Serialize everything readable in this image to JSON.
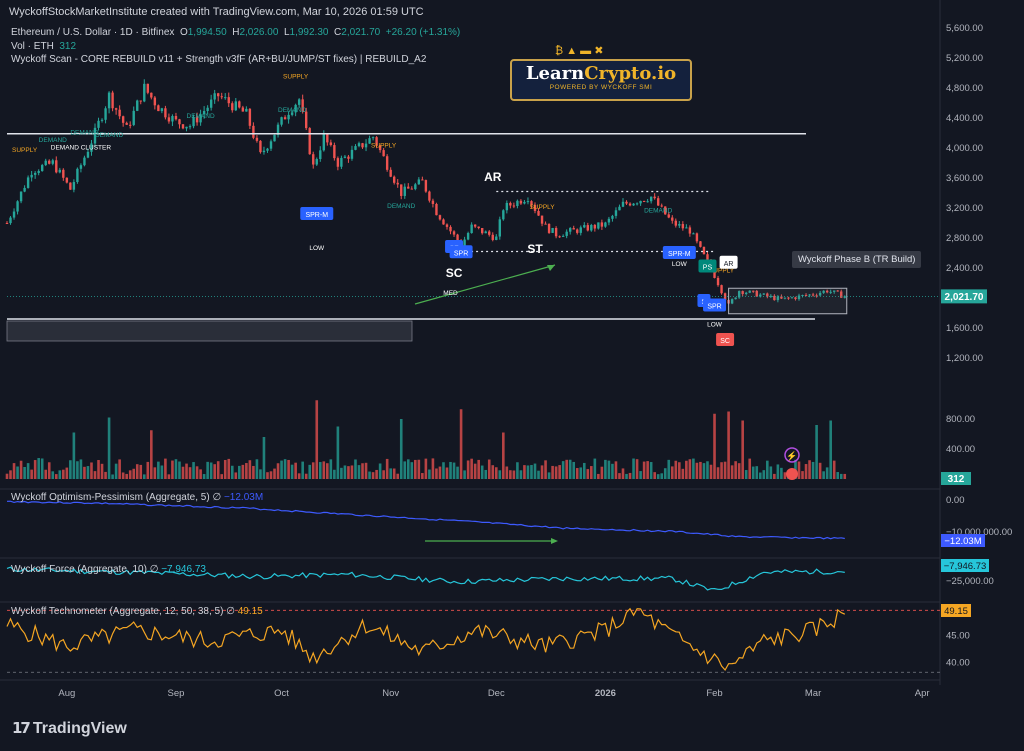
{
  "header": {
    "publisher": "WyckoffStockMarketInstitute created with TradingView.com, Mar 10, 2026 01:59 UTC",
    "symbol_line": "Ethereum / U.S. Dollar · 1D · Bitfinex",
    "ohlc": {
      "O": "1,994.50",
      "H": "2,026.00",
      "L": "1,992.30",
      "C": "2,021.70",
      "change": "+26.20 (+1.31%)"
    },
    "volume_label": "Vol · ETH",
    "volume_value": "312",
    "indicator_line": "Wyckoff Scan - CORE REBUILD v11 + Strength v3fF (AR+BU/JUMP/ST fixes) | REBUILD_A2"
  },
  "logo": {
    "brand_a": "Learn",
    "brand_b": "Crypto.io",
    "tagline": "POWERED BY WYCKOFF SMI"
  },
  "colors": {
    "background": "#131722",
    "up": "#26a69a",
    "down": "#ef5350",
    "force": "#26c6da",
    "optimism": "#3d5afe",
    "technometer": "#f5a623"
  },
  "footer": {
    "brand": "TradingView"
  },
  "chart_data": [
    {
      "type": "candlestick",
      "title": "Ethereum / U.S. Dollar · 1D · Bitfinex",
      "y_ticks": [
        "5,600.00",
        "5,200.00",
        "4,800.00",
        "4,400.00",
        "4,000.00",
        "3,600.00",
        "3,200.00",
        "2,800.00",
        "2,400.00",
        "2,000.00",
        "1,600.00",
        "1,200.00"
      ],
      "ylim": [
        1100,
        5700
      ],
      "x_ticks": [
        "Aug",
        "Sep",
        "Oct",
        "Nov",
        "Dec",
        "2026",
        "Feb",
        "Mar",
        "Apr"
      ],
      "last_price": "2,021.70",
      "anchors": [
        {
          "d": "2025-07-15",
          "p": 3000
        },
        {
          "d": "2025-07-22",
          "p": 3700
        },
        {
          "d": "2025-07-28",
          "p": 3800
        },
        {
          "d": "2025-08-02",
          "p": 3450
        },
        {
          "d": "2025-08-09",
          "p": 4200
        },
        {
          "d": "2025-08-13",
          "p": 4700
        },
        {
          "d": "2025-08-18",
          "p": 4250
        },
        {
          "d": "2025-08-23",
          "p": 4800
        },
        {
          "d": "2025-08-27",
          "p": 4550
        },
        {
          "d": "2025-09-01",
          "p": 4350
        },
        {
          "d": "2025-09-05",
          "p": 4300
        },
        {
          "d": "2025-09-13",
          "p": 4700
        },
        {
          "d": "2025-09-21",
          "p": 4450
        },
        {
          "d": "2025-09-25",
          "p": 3900
        },
        {
          "d": "2025-10-03",
          "p": 4500
        },
        {
          "d": "2025-10-06",
          "p": 4650
        },
        {
          "d": "2025-10-10",
          "p": 3750
        },
        {
          "d": "2025-10-13",
          "p": 4150
        },
        {
          "d": "2025-10-17",
          "p": 3800
        },
        {
          "d": "2025-10-27",
          "p": 4150
        },
        {
          "d": "2025-11-04",
          "p": 3400
        },
        {
          "d": "2025-11-10",
          "p": 3550
        },
        {
          "d": "2025-11-14",
          "p": 3150
        },
        {
          "d": "2025-11-21",
          "p": 2700
        },
        {
          "d": "2025-11-24",
          "p": 2950
        },
        {
          "d": "2025-12-01",
          "p": 2800
        },
        {
          "d": "2025-12-03",
          "p": 3200
        },
        {
          "d": "2025-12-10",
          "p": 3350
        },
        {
          "d": "2025-12-15",
          "p": 2950
        },
        {
          "d": "2025-12-18",
          "p": 2850
        },
        {
          "d": "2026-01-01",
          "p": 2980
        },
        {
          "d": "2026-01-06",
          "p": 3250
        },
        {
          "d": "2026-01-14",
          "p": 3350
        },
        {
          "d": "2026-01-20",
          "p": 3000
        },
        {
          "d": "2026-01-25",
          "p": 2900
        },
        {
          "d": "2026-02-01",
          "p": 2300
        },
        {
          "d": "2026-02-05",
          "p": 1900
        },
        {
          "d": "2026-02-08",
          "p": 2100
        },
        {
          "d": "2026-02-20",
          "p": 1980
        },
        {
          "d": "2026-03-01",
          "p": 2050
        },
        {
          "d": "2026-03-05",
          "p": 2100
        },
        {
          "d": "2026-03-10",
          "p": 2022
        }
      ],
      "levels": [
        {
          "price": 4190,
          "style": "solid"
        },
        {
          "price": 1720,
          "style": "solid"
        },
        {
          "price": 3420,
          "style": "dotted",
          "from": "2025-12-01",
          "to": "2026-01-31"
        },
        {
          "price": 2620,
          "style": "dotted",
          "from": "2025-11-21",
          "to": "2026-02-01"
        }
      ],
      "trading_range": {
        "from": "2026-02-05",
        "to": "2026-03-10",
        "low": 1790,
        "high": 2130
      },
      "labels": [
        {
          "text": "SUPPLY",
          "d": "2025-07-20",
          "p": 3950,
          "color": "#f5a623"
        },
        {
          "text": "DEMAND",
          "d": "2025-07-28",
          "p": 4080,
          "color": "#26a69a"
        },
        {
          "text": "DEMAND CLUSTER",
          "d": "2025-08-05",
          "p": 3980,
          "color": "#ffffff"
        },
        {
          "text": "DEMAND",
          "d": "2025-08-06",
          "p": 4180,
          "color": "#26a69a"
        },
        {
          "text": "DEMAND",
          "d": "2025-08-13",
          "p": 4150,
          "color": "#26a69a"
        },
        {
          "text": "DEMAND",
          "d": "2025-09-08",
          "p": 4400,
          "color": "#26a69a"
        },
        {
          "text": "SUPPLY",
          "d": "2025-10-05",
          "p": 4930,
          "color": "#f5a623"
        },
        {
          "text": "DEMAND",
          "d": "2025-10-04",
          "p": 4480,
          "color": "#26a69a"
        },
        {
          "text": "SUPPLY",
          "d": "2025-10-30",
          "p": 4010,
          "color": "#f5a623"
        },
        {
          "text": "DEMAND",
          "d": "2025-11-04",
          "p": 3200,
          "color": "#26a69a"
        },
        {
          "text": "LOW",
          "d": "2025-10-11",
          "p": 2640,
          "color": "#ffffff"
        },
        {
          "text": "AR",
          "d": "2025-11-30",
          "p": 3560,
          "color": "#ffffff",
          "size": "big"
        },
        {
          "text": "ST",
          "d": "2025-12-12",
          "p": 2600,
          "color": "#ffffff",
          "size": "big"
        },
        {
          "text": "SC",
          "d": "2025-11-19",
          "p": 2280,
          "color": "#ffffff",
          "size": "big"
        },
        {
          "text": "MED",
          "d": "2025-11-18",
          "p": 2040,
          "color": "#ffffff"
        },
        {
          "text": "SUPPLY",
          "d": "2025-12-14",
          "p": 3190,
          "color": "#f5a623"
        },
        {
          "text": "DEMAND",
          "d": "2026-01-16",
          "p": 3140,
          "color": "#26a69a"
        },
        {
          "text": "LOW",
          "d": "2026-01-22",
          "p": 2430,
          "color": "#ffffff"
        },
        {
          "text": "SUPPLY",
          "d": "2026-02-03",
          "p": 2340,
          "color": "#f5a623"
        },
        {
          "text": "LOW",
          "d": "2026-02-01",
          "p": 1620,
          "color": "#ffffff"
        }
      ],
      "badges": [
        {
          "text": "SPR-M",
          "d": "2025-10-11",
          "p": 3120,
          "color": "#2962ff"
        },
        {
          "text": "SF",
          "d": "2025-11-19",
          "p": 2680,
          "color": "#2962ff"
        },
        {
          "text": "SPR",
          "d": "2025-11-21",
          "p": 2610,
          "color": "#2962ff"
        },
        {
          "text": "SPR-M",
          "d": "2026-01-22",
          "p": 2600,
          "color": "#2962ff"
        },
        {
          "text": "PS",
          "d": "2026-01-30",
          "p": 2420,
          "color": "#00897b"
        },
        {
          "text": "AR",
          "d": "2026-02-05",
          "p": 2470,
          "color": "#ffffff"
        },
        {
          "text": "S",
          "d": "2026-01-29",
          "p": 1960,
          "color": "#2962ff"
        },
        {
          "text": "SPR",
          "d": "2026-02-01",
          "p": 1900,
          "color": "#2962ff"
        },
        {
          "text": "SC",
          "d": "2026-02-04",
          "p": 1440,
          "color": "#ef5350"
        }
      ],
      "phase_label": "Wyckoff Phase B (TR Build)"
    },
    {
      "type": "bar",
      "name": "Vol · ETH",
      "y_ticks": [
        "800.00",
        "400.00",
        "0.00"
      ],
      "last_value": "312",
      "spikes": [
        {
          "d": "2025-08-03",
          "v": 620
        },
        {
          "d": "2025-08-13",
          "v": 820
        },
        {
          "d": "2025-08-25",
          "v": 650
        },
        {
          "d": "2025-09-26",
          "v": 560
        },
        {
          "d": "2025-10-11",
          "v": 1050
        },
        {
          "d": "2025-10-17",
          "v": 700
        },
        {
          "d": "2025-11-04",
          "v": 800
        },
        {
          "d": "2025-11-21",
          "v": 930
        },
        {
          "d": "2025-12-03",
          "v": 620
        },
        {
          "d": "2026-02-01",
          "v": 870
        },
        {
          "d": "2026-02-05",
          "v": 900
        },
        {
          "d": "2026-02-09",
          "v": 780
        },
        {
          "d": "2026-03-02",
          "v": 720
        },
        {
          "d": "2026-03-06",
          "v": 780
        }
      ]
    },
    {
      "type": "line",
      "name": "Wyckoff Optimism-Pessimism (Aggregate, 5)",
      "label": "Wyckoff Optimism-Pessimism (Aggregate, 5)",
      "value_symbol": "∅",
      "current": "−12.03M",
      "y_ticks": [
        "0.00",
        "−10,000,000.00"
      ],
      "points": [
        {
          "d": "2025-07-15",
          "v": -0.5
        },
        {
          "d": "2025-08-10",
          "v": -1.0
        },
        {
          "d": "2025-09-20",
          "v": -2.5
        },
        {
          "d": "2025-10-20",
          "v": -4.5
        },
        {
          "d": "2025-11-20",
          "v": -6.5
        },
        {
          "d": "2025-12-20",
          "v": -8.8
        },
        {
          "d": "2026-01-20",
          "v": -9.8
        },
        {
          "d": "2026-02-08",
          "v": -11.5
        },
        {
          "d": "2026-03-10",
          "v": -12.03
        }
      ]
    },
    {
      "type": "line",
      "name": "Wyckoff Force (Aggregate, 10)",
      "label": "Wyckoff Force (Aggregate, 10)",
      "value_symbol": "∅",
      "current": "−7,946.73",
      "y_ticks": [
        "−25,000.00"
      ],
      "points": [
        {
          "d": "2025-07-15",
          "v": -6000
        },
        {
          "d": "2025-08-20",
          "v": -9000
        },
        {
          "d": "2025-09-25",
          "v": -13000
        },
        {
          "d": "2025-10-20",
          "v": -11000
        },
        {
          "d": "2025-11-20",
          "v": -18000
        },
        {
          "d": "2025-12-20",
          "v": -15000
        },
        {
          "d": "2026-01-20",
          "v": -15000
        },
        {
          "d": "2026-02-01",
          "v": -27000
        },
        {
          "d": "2026-02-15",
          "v": -9000
        },
        {
          "d": "2026-03-10",
          "v": -7946.73
        }
      ]
    },
    {
      "type": "line",
      "name": "Wyckoff Technometer (Aggregate, 12, 50, 38, 5)",
      "label": "Wyckoff Technometer (Aggregate, 12, 50, 38, 5)",
      "value_symbol": "∅",
      "current": "49.15",
      "y_ticks": [
        "45.00",
        "40.00"
      ],
      "ylim": [
        37.5,
        50.5
      ],
      "reference_lines": [
        49.7,
        38.2
      ],
      "points": [
        {
          "d": "2025-07-15",
          "v": 47
        },
        {
          "d": "2025-08-01",
          "v": 43
        },
        {
          "d": "2025-08-20",
          "v": 46
        },
        {
          "d": "2025-09-10",
          "v": 44
        },
        {
          "d": "2025-10-01",
          "v": 46
        },
        {
          "d": "2025-10-10",
          "v": 41
        },
        {
          "d": "2025-10-25",
          "v": 47
        },
        {
          "d": "2025-11-10",
          "v": 42
        },
        {
          "d": "2025-11-25",
          "v": 46
        },
        {
          "d": "2025-12-15",
          "v": 43
        },
        {
          "d": "2026-01-01",
          "v": 46
        },
        {
          "d": "2026-01-10",
          "v": 49.8
        },
        {
          "d": "2026-01-20",
          "v": 45
        },
        {
          "d": "2026-02-05",
          "v": 39
        },
        {
          "d": "2026-02-15",
          "v": 44
        },
        {
          "d": "2026-03-01",
          "v": 46
        },
        {
          "d": "2026-03-10",
          "v": 49.15
        }
      ]
    }
  ]
}
